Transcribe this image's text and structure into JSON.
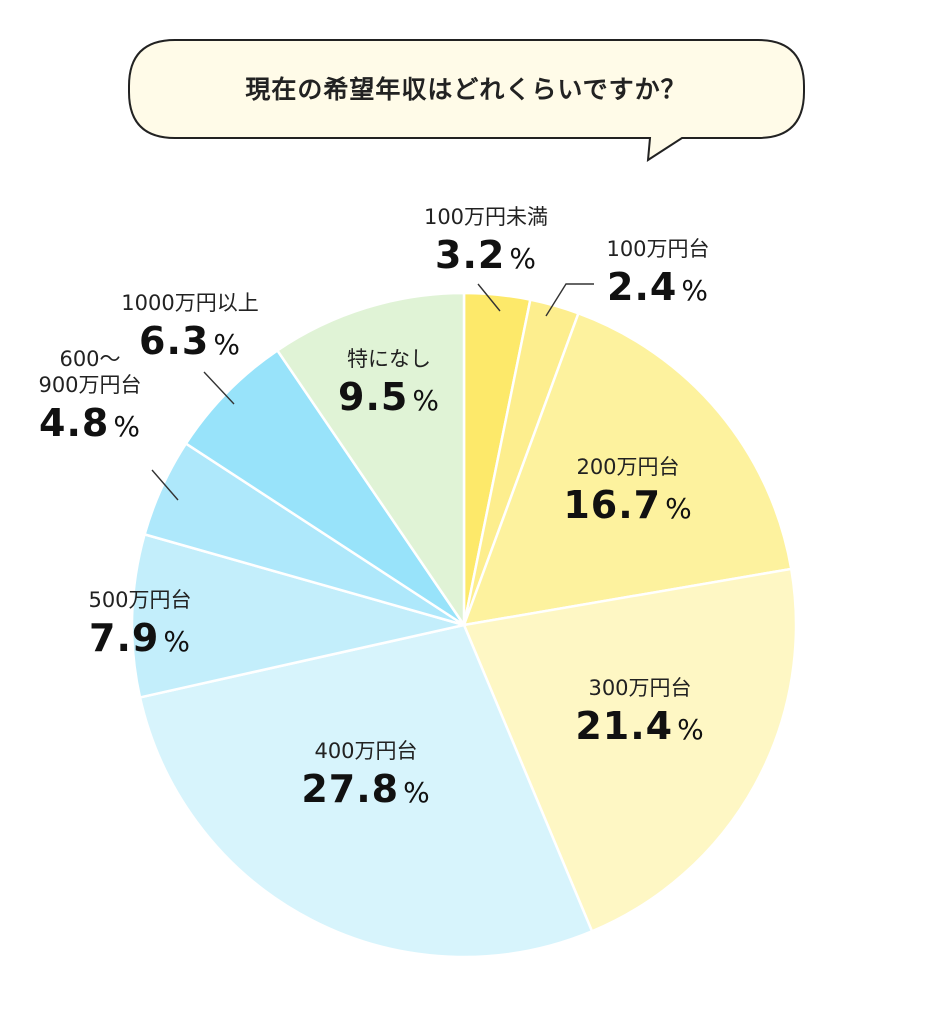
{
  "chart_data": {
    "type": "pie",
    "title": "現在の希望年収はどれくらいですか？",
    "unit": "%",
    "slices": [
      {
        "label": "100万円未満",
        "value": 3.2,
        "color": "#fde96a"
      },
      {
        "label": "100万円台",
        "value": 2.4,
        "color": "#fdee8e"
      },
      {
        "label": "200万円台",
        "value": 16.7,
        "color": "#fdf29e"
      },
      {
        "label": "300万円台",
        "value": 21.4,
        "color": "#fef7c4"
      },
      {
        "label": "400万円台",
        "value": 27.8,
        "color": "#d7f4fc"
      },
      {
        "label": "500万円台",
        "value": 7.9,
        "color": "#c3eefb"
      },
      {
        "label": "600～\n900万円台",
        "value": 4.8,
        "color": "#aee8fb"
      },
      {
        "label": "1000万円以上",
        "value": 6.3,
        "color": "#98e3fa"
      },
      {
        "label": "特になし",
        "value": 9.5,
        "color": "#e0f3d6"
      }
    ]
  }
}
